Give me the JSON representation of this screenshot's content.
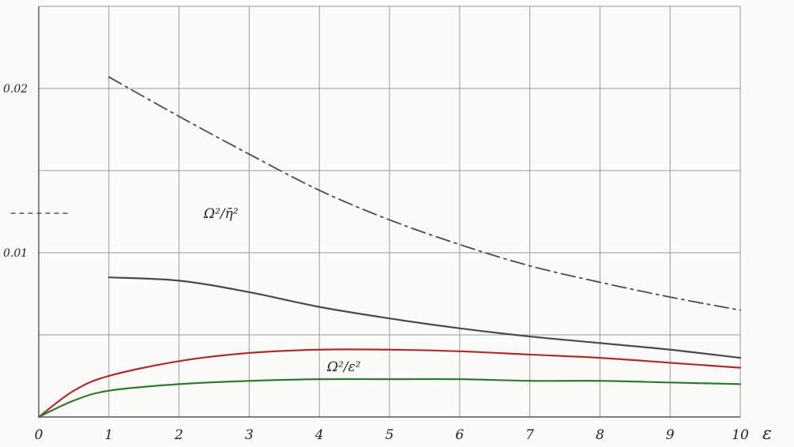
{
  "chart_data": {
    "type": "line",
    "xlabel": "ε",
    "ylabel": "",
    "title": "",
    "xlim": [
      0,
      10
    ],
    "ylim": [
      0,
      0.025
    ],
    "x_ticks": [
      "0",
      "1",
      "2",
      "3",
      "4",
      "5",
      "6",
      "7",
      "8",
      "9",
      "10"
    ],
    "y_ticks": [
      {
        "value": 0.01,
        "label": "0.01"
      },
      {
        "value": 0.02,
        "label": "0.02"
      }
    ],
    "grid": true,
    "annotations": [
      {
        "text": "Ω²/η̄²",
        "near_series": "dash-dot"
      },
      {
        "text": "Ω²/ε²",
        "near_series": "red"
      }
    ],
    "marker_segment": {
      "y": 0.0124,
      "x": [
        -0.4,
        0.45
      ],
      "style": "dashed"
    },
    "series": [
      {
        "style": "dash-dot",
        "color": "#4a4a4a",
        "x": [
          1,
          2,
          3,
          4,
          5,
          6,
          7,
          8,
          9,
          10
        ],
        "y": [
          0.0207,
          0.0183,
          0.016,
          0.0138,
          0.012,
          0.0105,
          0.0092,
          0.0082,
          0.0073,
          0.0065
        ]
      },
      {
        "style": "solid",
        "color": "#4a4a4a",
        "x": [
          1,
          2,
          3,
          4,
          5,
          6,
          7,
          8,
          9,
          10
        ],
        "y": [
          0.0085,
          0.0083,
          0.0076,
          0.0067,
          0.006,
          0.0054,
          0.0049,
          0.0045,
          0.0041,
          0.0036
        ]
      },
      {
        "style": "solid",
        "color": "#b02b2b",
        "x": [
          0,
          0.5,
          1,
          2,
          3,
          4,
          5,
          6,
          7,
          8,
          9,
          10
        ],
        "y": [
          0.0,
          0.0016,
          0.0025,
          0.0034,
          0.0039,
          0.0041,
          0.0041,
          0.004,
          0.0038,
          0.0036,
          0.0033,
          0.003
        ]
      },
      {
        "style": "solid",
        "color": "#2f7a2f",
        "x": [
          0,
          0.5,
          1,
          2,
          3,
          4,
          5,
          6,
          7,
          8,
          9,
          10
        ],
        "y": [
          0.0,
          0.001,
          0.0016,
          0.002,
          0.0022,
          0.0023,
          0.0023,
          0.0023,
          0.0022,
          0.0022,
          0.0021,
          0.002
        ]
      }
    ]
  }
}
